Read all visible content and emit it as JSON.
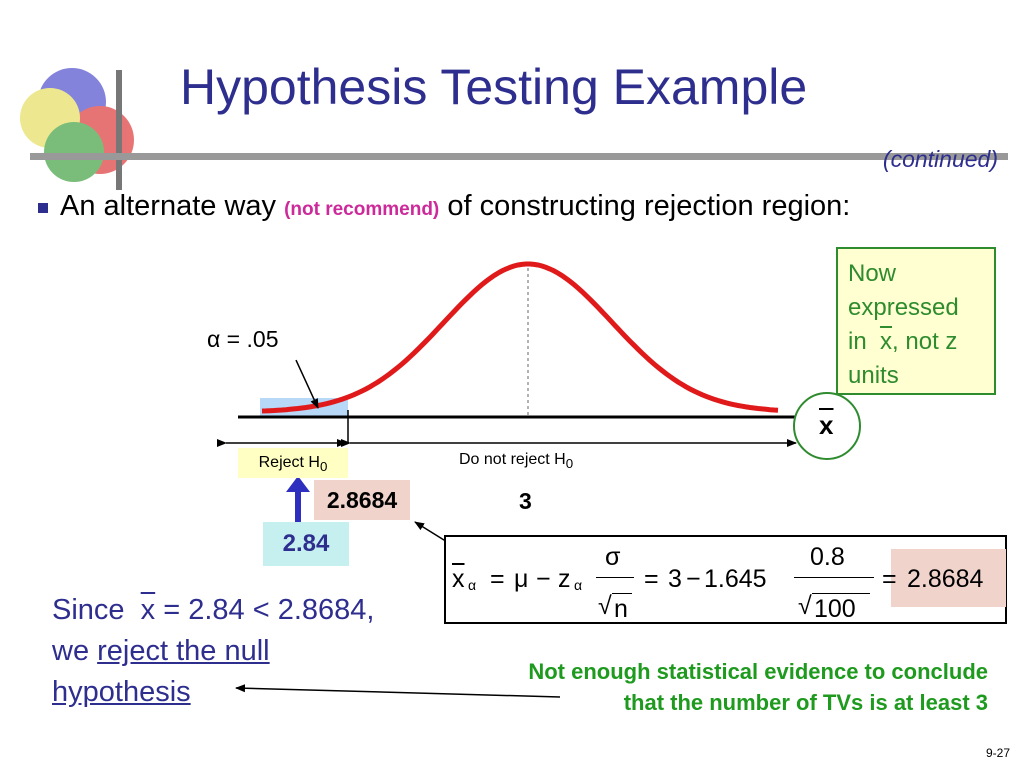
{
  "slide": {
    "title": "Hypothesis Testing Example",
    "continued": "(continued)",
    "bullet": {
      "text_before": "An alternate way",
      "note": "(not recommend)",
      "text_after": "of constructing rejection region:"
    },
    "green_box": {
      "line1": "Now",
      "line2": "expressed",
      "line3_pre": "in",
      "line3_var": "x",
      "line3_post": ", not z",
      "line4": "units"
    },
    "alpha_label": "α = .05",
    "axis_variable": "x",
    "reject_label": "Reject H",
    "do_not_reject_label": "Do not reject H",
    "subscript_zero": "0",
    "critical_value": "2.8684",
    "mean_value": "3",
    "sample_mean": "2.84",
    "formula": {
      "x": "x",
      "alpha_sub": "α",
      "equals1": "=",
      "mu": "μ",
      "minus1": "−",
      "z": "z",
      "sigma": "σ",
      "n": "n",
      "equals2": "=",
      "three": "3",
      "minus2": "−",
      "z_value": "1.645",
      "s_value": "0.8",
      "n_value": "100",
      "equals3": "=",
      "result": "2.8684"
    },
    "conclusion": {
      "line1_pre": "Since",
      "line1_var": "x",
      "line1_post": "= 2.84 < 2.8684,",
      "line2_pre": "we",
      "line2_link": "reject the null",
      "line3_link": "hypothesis"
    },
    "green_note": {
      "line1": "Not enough statistical evidence to conclude",
      "line2": "that the number of TVs is at least 3"
    },
    "page_number": "9-27"
  },
  "colors": {
    "title": "#2e2e8f",
    "curve": "#e01a1a",
    "green": "#2e8b2e",
    "pink": "#cc2a9a",
    "reject_region": "#b8d8f8"
  }
}
